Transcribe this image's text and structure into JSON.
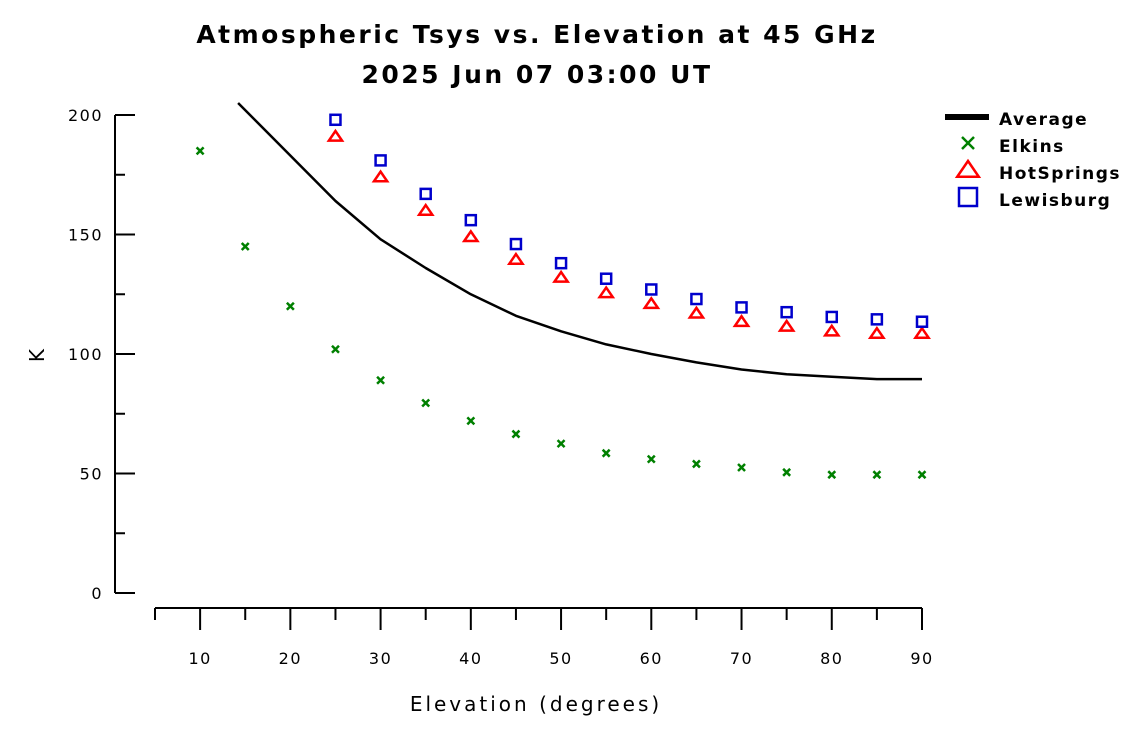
{
  "chart_data": {
    "type": "line",
    "title": "Atmospheric Tsys vs. Elevation at 45 GHz",
    "subtitle": "2025 Jun 07 03:00 UT",
    "xlabel": "Elevation (degrees)",
    "ylabel": "K",
    "xlim": [
      5,
      90
    ],
    "ylim": [
      0,
      200
    ],
    "x_ticks": [
      10,
      20,
      30,
      40,
      50,
      60,
      70,
      80,
      90
    ],
    "y_ticks": [
      0,
      50,
      100,
      150,
      200
    ],
    "legend_position": "top-right",
    "grid": false,
    "series": [
      {
        "name": "Average",
        "style": "line",
        "color": "#000000",
        "x": [
          20,
          25,
          30,
          35,
          40,
          45,
          50,
          55,
          60,
          65,
          70,
          75,
          80,
          85,
          90
        ],
        "y": [
          183,
          164,
          148,
          136,
          125,
          116,
          109.5,
          104,
          100,
          96.5,
          93.5,
          91.5,
          90.5,
          89.5,
          89.5
        ]
      },
      {
        "name": "Elkins",
        "style": "marker",
        "marker": "x",
        "color": "#008000",
        "x": [
          10,
          15,
          20,
          25,
          30,
          35,
          40,
          45,
          50,
          55,
          60,
          65,
          70,
          75,
          80,
          85,
          90
        ],
        "y": [
          185,
          145,
          120,
          102,
          89,
          79.5,
          72,
          66.5,
          62.5,
          58.5,
          56,
          54,
          52.5,
          50.5,
          49.5,
          49.5,
          49.5
        ]
      },
      {
        "name": "HotSprings",
        "style": "marker",
        "marker": "triangle",
        "color": "#ff0000",
        "x": [
          25,
          30,
          35,
          40,
          45,
          50,
          55,
          60,
          65,
          70,
          75,
          80,
          85,
          90
        ],
        "y": [
          191,
          174,
          160,
          149,
          139.5,
          132,
          125.5,
          121,
          117,
          113.5,
          111.5,
          109.5,
          108.5,
          108.5
        ]
      },
      {
        "name": "Lewisburg",
        "style": "marker",
        "marker": "square",
        "color": "#0000cc",
        "x": [
          25,
          30,
          35,
          40,
          45,
          50,
          55,
          60,
          65,
          70,
          75,
          80,
          85,
          90
        ],
        "y": [
          198,
          181,
          167,
          156,
          146,
          138,
          131.5,
          127,
          123,
          119.5,
          117.5,
          115.5,
          114.5,
          113.5
        ]
      }
    ]
  }
}
